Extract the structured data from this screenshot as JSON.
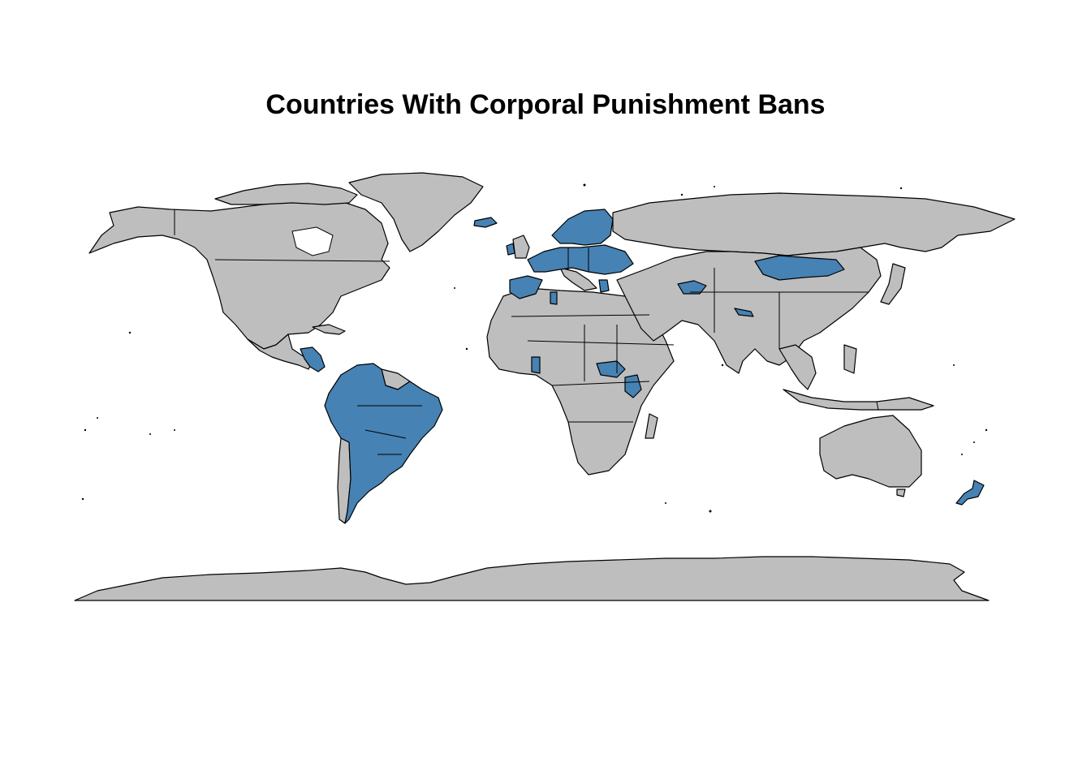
{
  "title": "Countries With Corporal Punishment Bans",
  "colors": {
    "ban": "#4682b4",
    "no_ban": "#bebebe",
    "border": "#000000",
    "background": "#ffffff"
  },
  "countries_with_ban": [
    "Sweden",
    "Finland",
    "Norway",
    "Denmark",
    "Iceland",
    "Germany",
    "France",
    "Spain",
    "Portugal",
    "Poland",
    "Ukraine",
    "Austria",
    "Hungary",
    "Romania",
    "Bulgaria",
    "Greece",
    "Ireland",
    "Netherlands",
    "Turkmenistan",
    "Mongolia",
    "Nepal",
    "South Sudan",
    "Kenya",
    "Togo",
    "Benin",
    "Tunisia",
    "Brazil",
    "Argentina",
    "Uruguay",
    "Paraguay",
    "Bolivia",
    "Peru",
    "Venezuela",
    "Colombia",
    "Honduras",
    "Nicaragua",
    "Costa Rica",
    "New Zealand"
  ]
}
